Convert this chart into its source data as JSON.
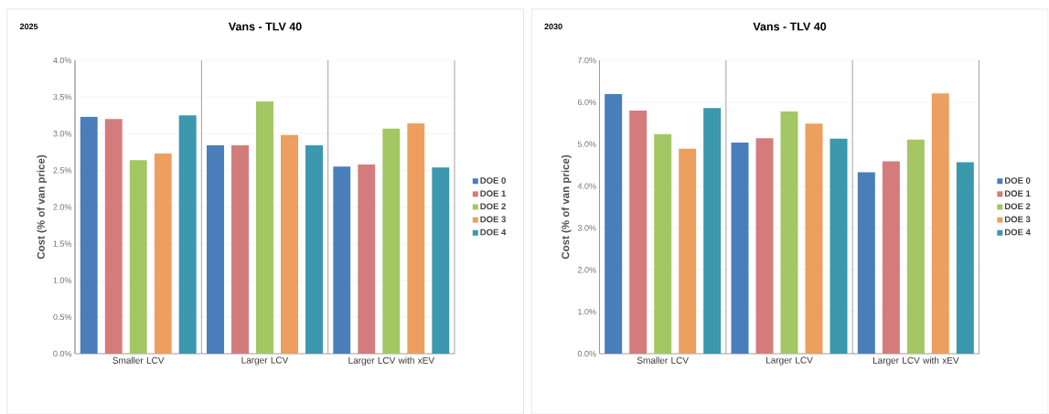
{
  "chart_data": [
    {
      "type": "bar",
      "title": "Vans - TLV 40",
      "subtitle": "2025",
      "ylabel": "Cost (% of van price)",
      "categories": [
        "Smaller LCV",
        "Larger LCV",
        "Larger LCV with xEV"
      ],
      "series": [
        {
          "name": "DOE 0",
          "color": "#4a7ebb",
          "values": [
            3.23,
            2.84,
            2.55
          ]
        },
        {
          "name": "DOE 1",
          "color": "#d47c7c",
          "values": [
            3.2,
            2.84,
            2.58
          ]
        },
        {
          "name": "DOE 2",
          "color": "#a3c763",
          "values": [
            2.64,
            3.44,
            3.07
          ]
        },
        {
          "name": "DOE 3",
          "color": "#ec9f5f",
          "values": [
            2.73,
            2.98,
            3.14
          ]
        },
        {
          "name": "DOE 4",
          "color": "#3b98ae",
          "values": [
            3.25,
            2.84,
            2.54
          ]
        }
      ],
      "ylim": [
        0,
        4
      ],
      "yticks": [
        {
          "value": 0,
          "label": "0.0%"
        },
        {
          "value": 0.5,
          "label": "0.5%"
        },
        {
          "value": 1,
          "label": "1.0%"
        },
        {
          "value": 1.5,
          "label": "1.5%"
        },
        {
          "value": 2,
          "label": "2.0%"
        },
        {
          "value": 2.5,
          "label": "2.5%"
        },
        {
          "value": 3,
          "label": "3.0%"
        },
        {
          "value": 3.5,
          "label": "3.5%"
        },
        {
          "value": 4,
          "label": "4.0%"
        }
      ],
      "grid": "y",
      "legend": "right"
    },
    {
      "type": "bar",
      "title": "Vans - TLV 40",
      "subtitle": "2030",
      "ylabel": "Cost (% of van price)",
      "categories": [
        "Smaller LCV",
        "Larger LCV",
        "Larger LCV with xEV"
      ],
      "series": [
        {
          "name": "DOE 0",
          "color": "#4a7ebb",
          "values": [
            6.2,
            5.04,
            4.33
          ]
        },
        {
          "name": "DOE 1",
          "color": "#d47c7c",
          "values": [
            5.8,
            5.14,
            4.59
          ]
        },
        {
          "name": "DOE 2",
          "color": "#a3c763",
          "values": [
            5.24,
            5.78,
            5.11
          ]
        },
        {
          "name": "DOE 3",
          "color": "#ec9f5f",
          "values": [
            4.89,
            5.49,
            6.21
          ]
        },
        {
          "name": "DOE 4",
          "color": "#3b98ae",
          "values": [
            5.86,
            5.13,
            4.57
          ]
        }
      ],
      "ylim": [
        0,
        7
      ],
      "yticks": [
        {
          "value": 0,
          "label": "0.0%"
        },
        {
          "value": 1,
          "label": "1.0%"
        },
        {
          "value": 2,
          "label": "2.0%"
        },
        {
          "value": 3,
          "label": "3.0%"
        },
        {
          "value": 4,
          "label": "4.0%"
        },
        {
          "value": 5,
          "label": "5.0%"
        },
        {
          "value": 6,
          "label": "6.0%"
        },
        {
          "value": 7,
          "label": "7.0%"
        }
      ],
      "grid": "y",
      "legend": "right"
    }
  ]
}
